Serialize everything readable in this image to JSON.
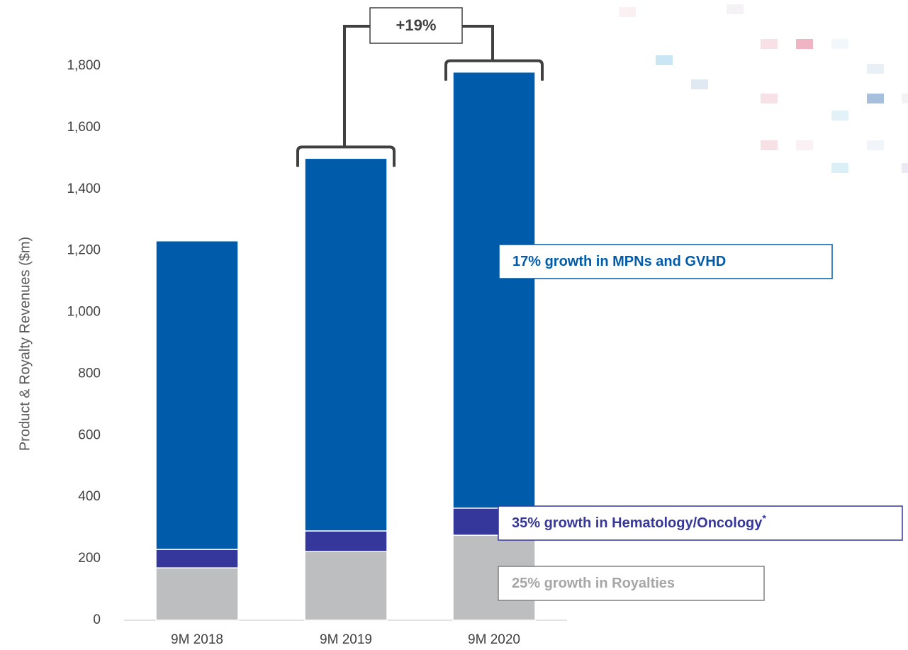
{
  "chart_data": {
    "type": "stacked_bar",
    "ylabel": "Product & Royalty Revenues ($m)",
    "categories": [
      "9M 2018",
      "9M 2019",
      "9M 2020"
    ],
    "series": [
      {
        "color": "#bcbec0",
        "values": [
          170,
          223,
          276
        ]
      },
      {
        "color": "#35379a",
        "values": [
          60,
          67,
          88
        ]
      },
      {
        "color": "#005cab",
        "values": [
          1002,
          1210,
          1416
        ]
      }
    ],
    "ylim": [
      0,
      1800
    ],
    "yticks": [
      0,
      200,
      400,
      600,
      800,
      {
        "value": 1000,
        "label": "1,000"
      },
      {
        "value": 1200,
        "label": "1,200"
      },
      {
        "value": 1400,
        "label": "1,400"
      },
      {
        "value": 1600,
        "label": "1,600"
      },
      {
        "value": 1800,
        "label": "1,800"
      }
    ],
    "grid": false,
    "growth_label": "+19%",
    "annotations": [
      {
        "text": "17% growth in MPNs and GVHD",
        "color": "#005cab"
      },
      {
        "text": "35% growth in Hematology/Oncology",
        "superscript": "*",
        "color": "#35379a"
      },
      {
        "text": "25% growth in Royalties",
        "color": "#a6a6a6"
      }
    ]
  }
}
